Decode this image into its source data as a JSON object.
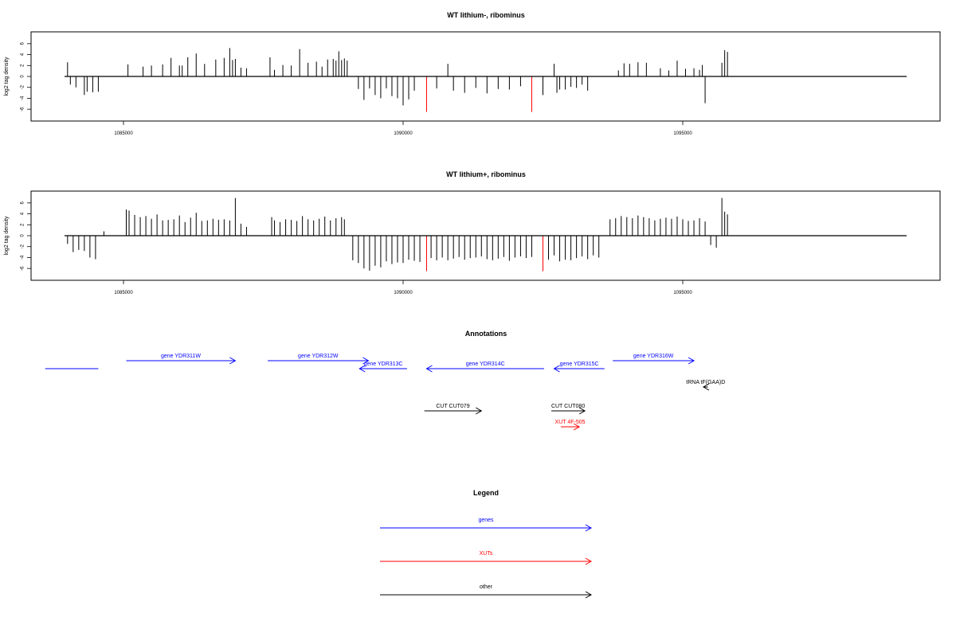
{
  "panels": [
    {
      "title": "WT lithium-, ribominus",
      "ylabel": "log2 tag density",
      "yticks": [
        "6",
        "4",
        "2",
        "0",
        "-2",
        "-4",
        "-6"
      ],
      "xticks": [
        "1085000",
        "1090000",
        "1095000"
      ]
    },
    {
      "title": "WT lithium+, ribominus",
      "ylabel": "log2 tag density",
      "yticks": [
        "6",
        "4",
        "2",
        "0",
        "-2",
        "-4",
        "-6"
      ],
      "xticks": [
        "1085000",
        "1090000",
        "1095000"
      ]
    }
  ],
  "annotations": {
    "title": "Annotations",
    "features": [
      {
        "label": "",
        "start": 1083600,
        "end": 1084550,
        "strand": "none",
        "color": "#0000ff",
        "row": 1
      },
      {
        "label": "gene YDR311W",
        "start": 1085050,
        "end": 1087000,
        "strand": "+",
        "color": "#0000ff",
        "row": 0
      },
      {
        "label": "gene YDR312W",
        "start": 1087580,
        "end": 1089380,
        "strand": "+",
        "color": "#0000ff",
        "row": 0
      },
      {
        "label": "gene YDR313C",
        "start": 1089220,
        "end": 1090070,
        "strand": "-",
        "color": "#0000ff",
        "row": 1
      },
      {
        "label": "gene YDR314C",
        "start": 1090420,
        "end": 1092520,
        "strand": "-",
        "color": "#0000ff",
        "row": 1
      },
      {
        "label": "gene YDR315C",
        "start": 1092700,
        "end": 1093600,
        "strand": "-",
        "color": "#0000ff",
        "row": 1
      },
      {
        "label": "gene YDR316W",
        "start": 1093750,
        "end": 1095200,
        "strand": "+",
        "color": "#0000ff",
        "row": 0
      },
      {
        "label": "tRNA tF(GAA)D",
        "start": 1095370,
        "end": 1095450,
        "strand": "-",
        "color": "#000000",
        "row": 2
      },
      {
        "label": "CUT CUT079",
        "start": 1090380,
        "end": 1091400,
        "strand": "+",
        "color": "#000000",
        "row": 3
      },
      {
        "label": "CUT CUT080",
        "start": 1092650,
        "end": 1093250,
        "strand": "+",
        "color": "#000000",
        "row": 3
      },
      {
        "label": "XUT 4F-505",
        "start": 1092820,
        "end": 1093150,
        "strand": "+",
        "color": "#ff0000",
        "row": 4
      }
    ]
  },
  "legend": {
    "title": "Legend",
    "items": [
      {
        "label": "genes",
        "color": "#0000ff"
      },
      {
        "label": "XUTs",
        "color": "#ff0000"
      },
      {
        "label": "other",
        "color": "#000000"
      }
    ]
  },
  "chart_data": [
    {
      "type": "bar",
      "title": "WT lithium-, ribominus",
      "xlabel": "",
      "ylabel": "log2 tag density",
      "xlim": [
        1083350,
        1099250
      ],
      "ylim": [
        -7,
        7
      ],
      "note_values": "sampled approximate per-position log2 tag density; positive = plus strand, negative = minus strand",
      "x": [
        1084000,
        1084050,
        1084150,
        1084300,
        1084350,
        1084450,
        1084550,
        1085080,
        1085350,
        1085500,
        1085700,
        1085850,
        1086000,
        1086050,
        1086150,
        1086300,
        1086450,
        1086650,
        1086800,
        1086900,
        1086950,
        1087000,
        1087100,
        1087200,
        1087620,
        1087700,
        1087850,
        1088000,
        1088150,
        1088300,
        1088450,
        1088550,
        1088650,
        1088750,
        1088800,
        1088850,
        1088900,
        1088950,
        1089000,
        1089200,
        1089300,
        1089400,
        1089500,
        1089600,
        1089700,
        1089800,
        1089900,
        1090000,
        1090100,
        1090200,
        1090420,
        1090600,
        1090800,
        1090900,
        1091100,
        1091300,
        1091500,
        1091700,
        1091900,
        1092100,
        1092300,
        1092500,
        1092700,
        1092750,
        1092800,
        1092900,
        1093000,
        1093100,
        1093200,
        1093300,
        1093850,
        1093950,
        1094050,
        1094200,
        1094350,
        1094600,
        1094750,
        1094900,
        1095050,
        1095200,
        1095300,
        1095350,
        1095400,
        1095700,
        1095750,
        1095800
      ],
      "values": [
        2.6,
        -1.5,
        -2.0,
        -3.4,
        -2.8,
        -2.9,
        -2.8,
        2.2,
        1.8,
        2.0,
        2.2,
        3.4,
        2.0,
        2.0,
        3.5,
        4.2,
        2.3,
        3.1,
        3.4,
        5.2,
        3.0,
        3.2,
        1.6,
        1.5,
        3.5,
        1.2,
        2.1,
        2.0,
        5.0,
        2.5,
        2.7,
        1.8,
        3.1,
        3.2,
        2.9,
        4.6,
        3.0,
        3.3,
        2.9,
        -2.3,
        -4.3,
        -2.2,
        -3.4,
        -4.0,
        -2.2,
        -3.6,
        -4.0,
        -5.3,
        -4.2,
        -2.6,
        -6.5,
        -2.2,
        2.3,
        -2.6,
        -3.0,
        -2.1,
        -3.1,
        -2.3,
        -2.4,
        -1.8,
        -6.5,
        -3.4,
        2.3,
        -3.0,
        -2.4,
        -2.4,
        -1.9,
        -2.1,
        -1.5,
        -2.6,
        1.1,
        2.4,
        2.3,
        2.6,
        2.5,
        1.5,
        1.1,
        2.9,
        1.4,
        1.5,
        1.2,
        2.1,
        -4.9,
        2.5,
        4.8,
        4.5
      ]
    },
    {
      "type": "bar",
      "title": "WT lithium+, ribominus",
      "xlabel": "",
      "ylabel": "log2 tag density",
      "xlim": [
        1083350,
        1099250
      ],
      "ylim": [
        -7,
        7
      ],
      "note_values": "sampled approximate per-position log2 tag density; positive = plus strand, negative = minus strand",
      "x": [
        1084000,
        1084100,
        1084200,
        1084300,
        1084400,
        1084500,
        1084650,
        1085050,
        1085100,
        1085200,
        1085300,
        1085400,
        1085500,
        1085600,
        1085700,
        1085800,
        1085900,
        1086000,
        1086100,
        1086200,
        1086300,
        1086400,
        1086500,
        1086600,
        1086700,
        1086800,
        1086900,
        1087000,
        1087100,
        1087200,
        1087650,
        1087700,
        1087800,
        1087900,
        1088000,
        1088100,
        1088200,
        1088300,
        1088400,
        1088500,
        1088600,
        1088700,
        1088800,
        1088900,
        1088950,
        1089100,
        1089200,
        1089300,
        1089400,
        1089500,
        1089600,
        1089700,
        1089800,
        1089900,
        1090000,
        1090100,
        1090200,
        1090300,
        1090420,
        1090500,
        1090600,
        1090700,
        1090800,
        1090900,
        1091000,
        1091100,
        1091200,
        1091300,
        1091400,
        1091500,
        1091600,
        1091700,
        1091800,
        1091900,
        1092000,
        1092100,
        1092200,
        1092300,
        1092500,
        1092600,
        1092700,
        1092800,
        1092900,
        1093000,
        1093100,
        1093200,
        1093300,
        1093400,
        1093500,
        1093700,
        1093800,
        1093900,
        1094000,
        1094100,
        1094200,
        1094300,
        1094400,
        1094500,
        1094600,
        1094700,
        1094800,
        1094900,
        1095000,
        1095100,
        1095200,
        1095300,
        1095400,
        1095500,
        1095600,
        1095700,
        1095750,
        1095800
      ],
      "values": [
        -1.5,
        -3.0,
        -2.6,
        -2.8,
        -4.0,
        -4.3,
        0.8,
        4.8,
        4.6,
        3.8,
        3.4,
        3.6,
        3.1,
        3.9,
        2.8,
        2.9,
        3.0,
        3.7,
        2.5,
        3.3,
        4.2,
        2.7,
        2.8,
        3.1,
        2.9,
        3.0,
        2.8,
        6.9,
        2.2,
        1.6,
        3.4,
        2.8,
        2.5,
        3.0,
        2.9,
        2.7,
        3.6,
        3.0,
        2.8,
        3.1,
        3.5,
        2.8,
        3.2,
        3.4,
        3.0,
        -4.5,
        -5.0,
        -6.0,
        -6.4,
        -5.5,
        -5.8,
        -4.7,
        -5.2,
        -4.9,
        -5.0,
        -4.4,
        -4.6,
        -4.8,
        -6.5,
        -4.1,
        -4.5,
        -4.0,
        -4.5,
        -4.2,
        -3.9,
        -4.4,
        -4.1,
        -4.0,
        -3.8,
        -4.3,
        -4.5,
        -4.2,
        -3.9,
        -4.6,
        -4.0,
        -3.8,
        -4.1,
        -3.9,
        -6.5,
        -4.4,
        -3.6,
        -4.7,
        -4.4,
        -4.5,
        -4.1,
        -3.8,
        -4.3,
        -3.6,
        -4.0,
        3.0,
        3.2,
        3.6,
        3.4,
        3.2,
        3.7,
        3.4,
        3.2,
        2.8,
        3.1,
        3.3,
        3.1,
        3.5,
        3.0,
        2.7,
        2.8,
        3.2,
        2.6,
        -1.7,
        -2.2,
        6.9,
        4.4,
        3.9
      ]
    }
  ]
}
